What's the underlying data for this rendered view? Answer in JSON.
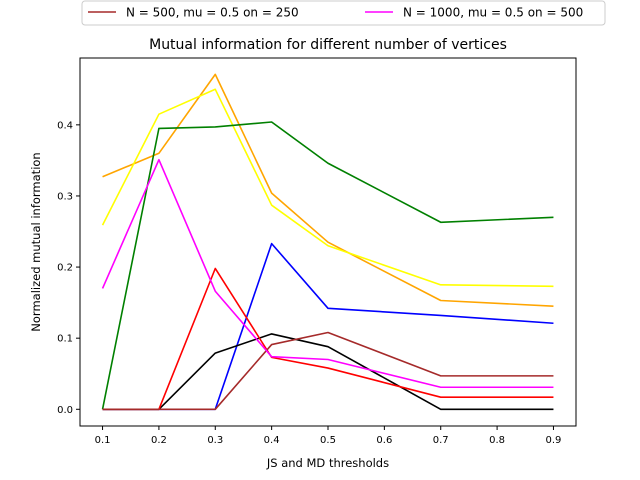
{
  "chart_data": {
    "type": "line",
    "title": "Mutual information for different number of vertices",
    "xlabel": "JS and MD thresholds",
    "ylabel": "Normalized mutual information",
    "x": [
      0.1,
      0.2,
      0.3,
      0.4,
      0.5,
      0.7,
      0.9
    ],
    "xticks": [
      "0.1",
      "0.2",
      "0.3",
      "0.4",
      "0.5",
      "0.6",
      "0.7",
      "0.8",
      "0.9"
    ],
    "xtick_values": [
      0.1,
      0.2,
      0.3,
      0.4,
      0.5,
      0.6,
      0.7,
      0.8,
      0.9
    ],
    "yticks": [
      "0.0",
      "0.1",
      "0.2",
      "0.3",
      "0.4"
    ],
    "ytick_values": [
      0.0,
      0.1,
      0.2,
      0.3,
      0.4
    ],
    "xlim": [
      0.06,
      0.94
    ],
    "ylim": [
      -0.0235,
      0.494
    ],
    "grid": false,
    "legend_placement": "top, above plot",
    "series": [
      {
        "name": "",
        "color": "#ffa500",
        "values": [
          0.327,
          0.36,
          0.471,
          0.304,
          0.235,
          0.153,
          0.145
        ]
      },
      {
        "name": "",
        "color": "#ffff00",
        "values": [
          0.259,
          0.415,
          0.45,
          0.287,
          0.23,
          0.175,
          0.173
        ]
      },
      {
        "name": "",
        "color": "#008000",
        "values": [
          0.0,
          0.395,
          0.397,
          0.404,
          0.346,
          0.263,
          0.27
        ]
      },
      {
        "name": "",
        "color": "#0000ff",
        "values": [
          0.0,
          0.0,
          0.0,
          0.233,
          0.142,
          0.132,
          0.121
        ]
      },
      {
        "name": "",
        "color": "#000000",
        "values": [
          0.0,
          0.0,
          0.079,
          0.106,
          0.088,
          0.0,
          0.0
        ]
      },
      {
        "name": "",
        "color": "#ff0000",
        "values": [
          0.0,
          0.0,
          0.198,
          0.073,
          0.058,
          0.017,
          0.017
        ]
      },
      {
        "name": "N = 500, mu = 0.5 on = 250",
        "color": "#a52a2a",
        "values": [
          0.0,
          0.0,
          0.0,
          0.091,
          0.108,
          0.047,
          0.047
        ]
      },
      {
        "name": "N = 1000, mu = 0.5 on = 500",
        "color": "#ff00ff",
        "values": [
          0.17,
          0.351,
          0.166,
          0.074,
          0.07,
          0.031,
          0.031
        ]
      }
    ]
  }
}
